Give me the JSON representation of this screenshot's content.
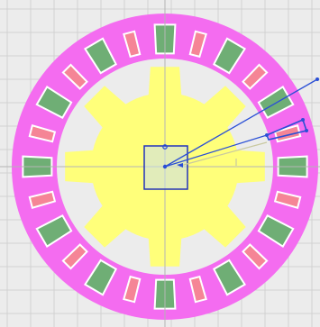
{
  "viewport": {
    "background": "#ececec",
    "grid_color": "#d2d2d2",
    "axis_color": "#b5b5b5"
  },
  "stator": {
    "color": "#f46cf0",
    "slot_count": 24
  },
  "coils": {
    "phase_a_color": "#6fae75",
    "phase_b_color": "#f58596",
    "edge_color": "#ffffff"
  },
  "rotor": {
    "color": "#ffff7a",
    "pole_count": 8
  },
  "shaft": {
    "color": "#c9dcef",
    "outline_color": "#2233bb"
  },
  "annotation": {
    "line_color": "#2a4fd6",
    "label_color": "#c9c9a0"
  }
}
